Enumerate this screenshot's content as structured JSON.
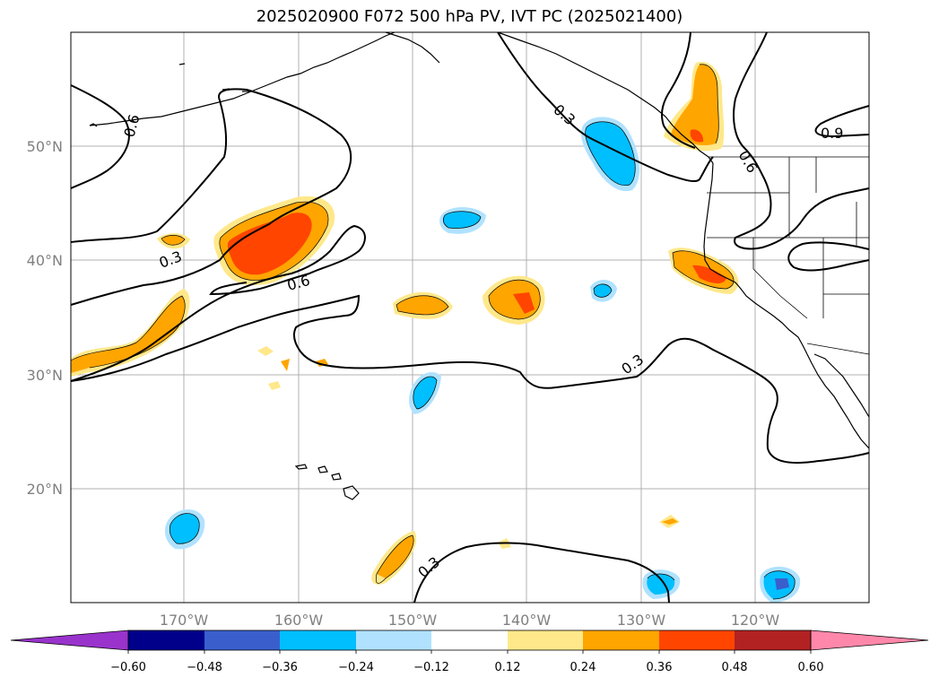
{
  "title": "2025020900 F072 500 hPa PV, IVT PC (2025021400)",
  "lon_labels": [
    "170°W",
    "160°W",
    "150°W",
    "140°W",
    "130°W",
    "120°W"
  ],
  "lat_labels": [
    "50°N",
    "40°N",
    "30°N",
    "20°N"
  ],
  "contour_labels": [
    "0.6",
    "0.3",
    "0.6",
    "0.3",
    "0.3",
    "0.6",
    "0.9",
    "0.3"
  ],
  "colorbar": {
    "ticks": [
      "−0.60",
      "−0.48",
      "−0.36",
      "−0.24",
      "−0.12",
      "0.12",
      "0.24",
      "0.36",
      "0.48",
      "0.60"
    ],
    "colors": [
      "#9933cc",
      "#00008b",
      "#3a5fcd",
      "#00bfff",
      "#b0e2ff",
      "#ffffff",
      "#ffe88a",
      "#ffa500",
      "#ff4500",
      "#b22222",
      "#ff88aa"
    ]
  },
  "shading_colors": {
    "pos_light": "#ffe88a",
    "pos_mid": "#ffa500",
    "pos_high": "#ff4500",
    "neg_light": "#b0e2ff",
    "neg_mid": "#00bfff",
    "neg_high": "#3a5fcd"
  }
}
